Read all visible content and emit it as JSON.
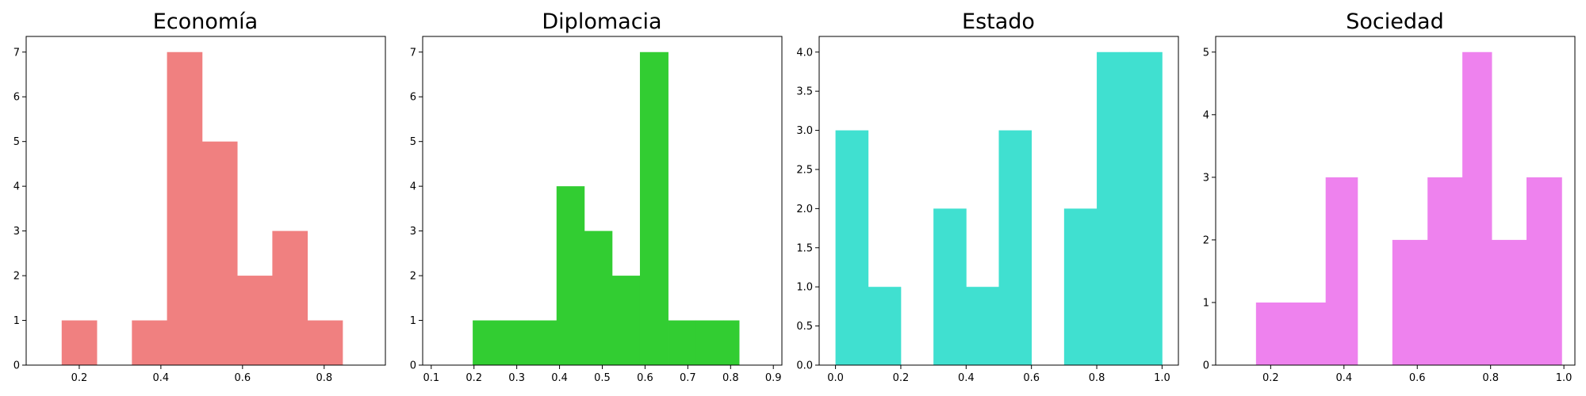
{
  "chart_data": [
    {
      "type": "bar",
      "title": "Economía",
      "color": "#F08080",
      "xlim": [
        0.07,
        0.95
      ],
      "ylim": [
        0,
        7.35
      ],
      "xticks": [
        0.2,
        0.4,
        0.6,
        0.8
      ],
      "xtick_labels": [
        "0.2",
        "0.4",
        "0.6",
        "0.8"
      ],
      "yticks": [
        0,
        1,
        2,
        3,
        4,
        5,
        6,
        7
      ],
      "ytick_labels": [
        "0",
        "1",
        "2",
        "3",
        "4",
        "5",
        "6",
        "7"
      ],
      "bins": [
        {
          "x0": 0.157,
          "x1": 0.243,
          "count": 1
        },
        {
          "x0": 0.243,
          "x1": 0.329,
          "count": 0
        },
        {
          "x0": 0.329,
          "x1": 0.415,
          "count": 1
        },
        {
          "x0": 0.415,
          "x1": 0.501,
          "count": 7
        },
        {
          "x0": 0.501,
          "x1": 0.587,
          "count": 5
        },
        {
          "x0": 0.587,
          "x1": 0.673,
          "count": 2
        },
        {
          "x0": 0.673,
          "x1": 0.759,
          "count": 3
        },
        {
          "x0": 0.759,
          "x1": 0.845,
          "count": 1
        }
      ]
    },
    {
      "type": "bar",
      "title": "Diplomacia",
      "color": "#32CD32",
      "xlim": [
        0.08,
        0.92
      ],
      "ylim": [
        0,
        7.35
      ],
      "xticks": [
        0.1,
        0.2,
        0.3,
        0.4,
        0.5,
        0.6,
        0.7,
        0.8,
        0.9
      ],
      "xtick_labels": [
        "0.1",
        "0.2",
        "0.3",
        "0.4",
        "0.5",
        "0.6",
        "0.7",
        "0.8",
        "0.9"
      ],
      "yticks": [
        0,
        1,
        2,
        3,
        4,
        5,
        6,
        7
      ],
      "ytick_labels": [
        "0",
        "1",
        "2",
        "3",
        "4",
        "5",
        "6",
        "7"
      ],
      "bins": [
        {
          "x0": 0.197,
          "x1": 0.262,
          "count": 1
        },
        {
          "x0": 0.262,
          "x1": 0.327,
          "count": 1
        },
        {
          "x0": 0.327,
          "x1": 0.393,
          "count": 1
        },
        {
          "x0": 0.393,
          "x1": 0.458,
          "count": 4
        },
        {
          "x0": 0.458,
          "x1": 0.523,
          "count": 3
        },
        {
          "x0": 0.523,
          "x1": 0.588,
          "count": 2
        },
        {
          "x0": 0.588,
          "x1": 0.654,
          "count": 7
        },
        {
          "x0": 0.654,
          "x1": 0.719,
          "count": 1
        },
        {
          "x0": 0.719,
          "x1": 0.784,
          "count": 1
        },
        {
          "x0": 0.784,
          "x1": 0.82,
          "count": 1
        }
      ]
    },
    {
      "type": "bar",
      "title": "Estado",
      "color": "#40E0D0",
      "xlim": [
        -0.05,
        1.05
      ],
      "ylim": [
        0,
        4.2
      ],
      "xticks": [
        0.0,
        0.2,
        0.4,
        0.6,
        0.8,
        1.0
      ],
      "xtick_labels": [
        "0.0",
        "0.2",
        "0.4",
        "0.6",
        "0.8",
        "1.0"
      ],
      "yticks": [
        0.0,
        0.5,
        1.0,
        1.5,
        2.0,
        2.5,
        3.0,
        3.5,
        4.0
      ],
      "ytick_labels": [
        "0.0",
        "0.5",
        "1.0",
        "1.5",
        "2.0",
        "2.5",
        "3.0",
        "3.5",
        "4.0"
      ],
      "bins": [
        {
          "x0": 0.0,
          "x1": 0.1,
          "count": 3
        },
        {
          "x0": 0.1,
          "x1": 0.2,
          "count": 1
        },
        {
          "x0": 0.2,
          "x1": 0.3,
          "count": 0
        },
        {
          "x0": 0.3,
          "x1": 0.4,
          "count": 2
        },
        {
          "x0": 0.4,
          "x1": 0.5,
          "count": 1
        },
        {
          "x0": 0.5,
          "x1": 0.6,
          "count": 3
        },
        {
          "x0": 0.6,
          "x1": 0.7,
          "count": 0
        },
        {
          "x0": 0.7,
          "x1": 0.8,
          "count": 2
        },
        {
          "x0": 0.8,
          "x1": 0.9,
          "count": 4
        },
        {
          "x0": 0.9,
          "x1": 1.0,
          "count": 4
        }
      ]
    },
    {
      "type": "bar",
      "title": "Sociedad",
      "color": "#EE82EE",
      "xlim": [
        0.05,
        1.03
      ],
      "ylim": [
        0,
        5.25
      ],
      "xticks": [
        0.2,
        0.4,
        0.6,
        0.8,
        1.0
      ],
      "xtick_labels": [
        "0.2",
        "0.4",
        "0.6",
        "0.8",
        "1.0"
      ],
      "yticks": [
        0,
        1,
        2,
        3,
        4,
        5
      ],
      "ytick_labels": [
        "0",
        "1",
        "2",
        "3",
        "4",
        "5"
      ],
      "bins": [
        {
          "x0": 0.16,
          "x1": 0.255,
          "count": 1
        },
        {
          "x0": 0.255,
          "x1": 0.35,
          "count": 1
        },
        {
          "x0": 0.35,
          "x1": 0.437,
          "count": 3
        },
        {
          "x0": 0.437,
          "x1": 0.532,
          "count": 0
        },
        {
          "x0": 0.532,
          "x1": 0.628,
          "count": 2
        },
        {
          "x0": 0.628,
          "x1": 0.723,
          "count": 3
        },
        {
          "x0": 0.723,
          "x1": 0.803,
          "count": 5
        },
        {
          "x0": 0.803,
          "x1": 0.898,
          "count": 2
        },
        {
          "x0": 0.898,
          "x1": 0.994,
          "count": 3
        }
      ]
    }
  ]
}
